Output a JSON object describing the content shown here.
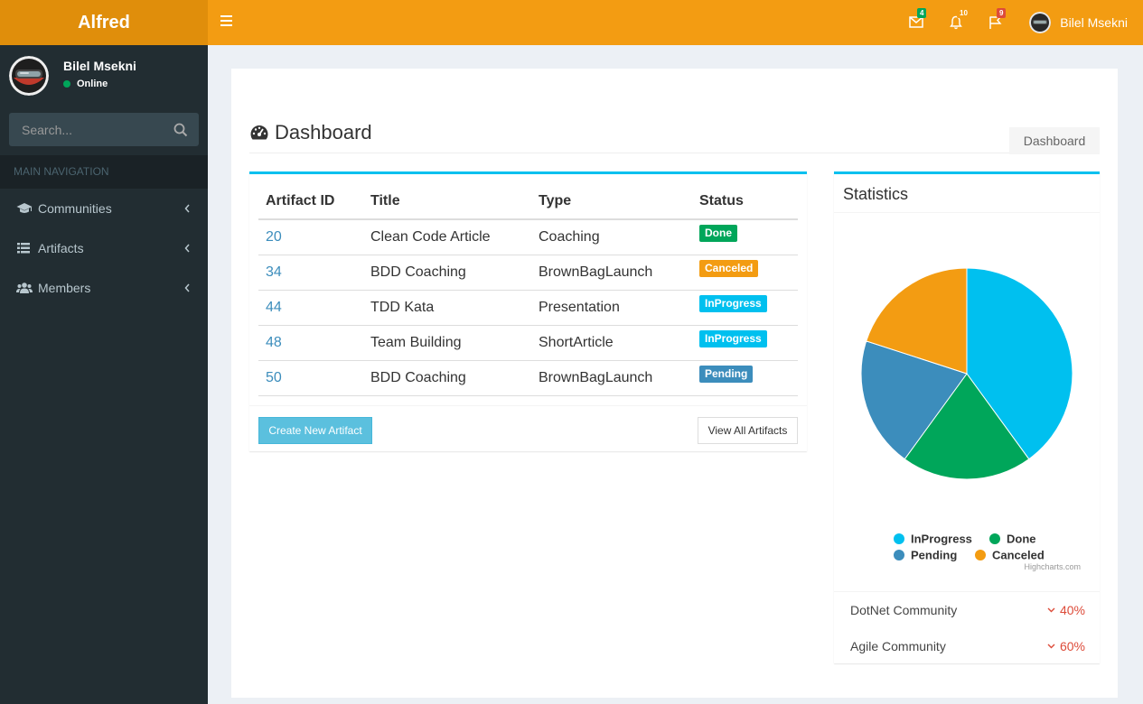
{
  "app": {
    "title": "Alfred"
  },
  "navbar": {
    "messages_count": "4",
    "notifications_count": "10",
    "tasks_count": "9",
    "user_name": "Bilel Msekni",
    "colors": {
      "messages": "#00a65a",
      "notifications": "#f39c12",
      "tasks": "#dd4b39"
    }
  },
  "sidebar": {
    "user_name": "Bilel Msekni",
    "user_status": "Online",
    "search_placeholder": "Search...",
    "nav_header": "MAIN NAVIGATION",
    "items": [
      {
        "label": "Communities",
        "icon": "graduation-cap-icon"
      },
      {
        "label": "Artifacts",
        "icon": "list-icon"
      },
      {
        "label": "Members",
        "icon": "users-icon"
      }
    ]
  },
  "page": {
    "title": "Dashboard",
    "breadcrumb": "Dashboard"
  },
  "artifacts_table": {
    "headers": [
      "Artifact ID",
      "Title",
      "Type",
      "Status"
    ],
    "rows": [
      {
        "id": "20",
        "title": "Clean Code Article",
        "type": "Coaching",
        "status": "Done",
        "status_color": "#00a65a"
      },
      {
        "id": "34",
        "title": "BDD Coaching",
        "type": "BrownBagLaunch",
        "status": "Canceled",
        "status_color": "#f39c12"
      },
      {
        "id": "44",
        "title": "TDD Kata",
        "type": "Presentation",
        "status": "InProgress",
        "status_color": "#00c0ef"
      },
      {
        "id": "48",
        "title": "Team Building",
        "type": "ShortArticle",
        "status": "InProgress",
        "status_color": "#00c0ef"
      },
      {
        "id": "50",
        "title": "BDD Coaching",
        "type": "BrownBagLaunch",
        "status": "Pending",
        "status_color": "#3c8dbc"
      }
    ],
    "create_button": "Create New Artifact",
    "view_all_button": "View All Artifacts"
  },
  "statistics": {
    "title": "Statistics",
    "credits": "Highcharts.com",
    "communities": [
      {
        "name": "DotNet Community",
        "percent": "40%"
      },
      {
        "name": "Agile Community",
        "percent": "60%"
      }
    ]
  },
  "chart_data": {
    "type": "pie",
    "categories": [
      "InProgress",
      "Done",
      "Pending",
      "Canceled"
    ],
    "values": [
      40,
      20,
      20,
      20
    ],
    "colors": [
      "#00c0ef",
      "#00a65a",
      "#3c8dbc",
      "#f39c12"
    ],
    "legend": "bottom"
  }
}
